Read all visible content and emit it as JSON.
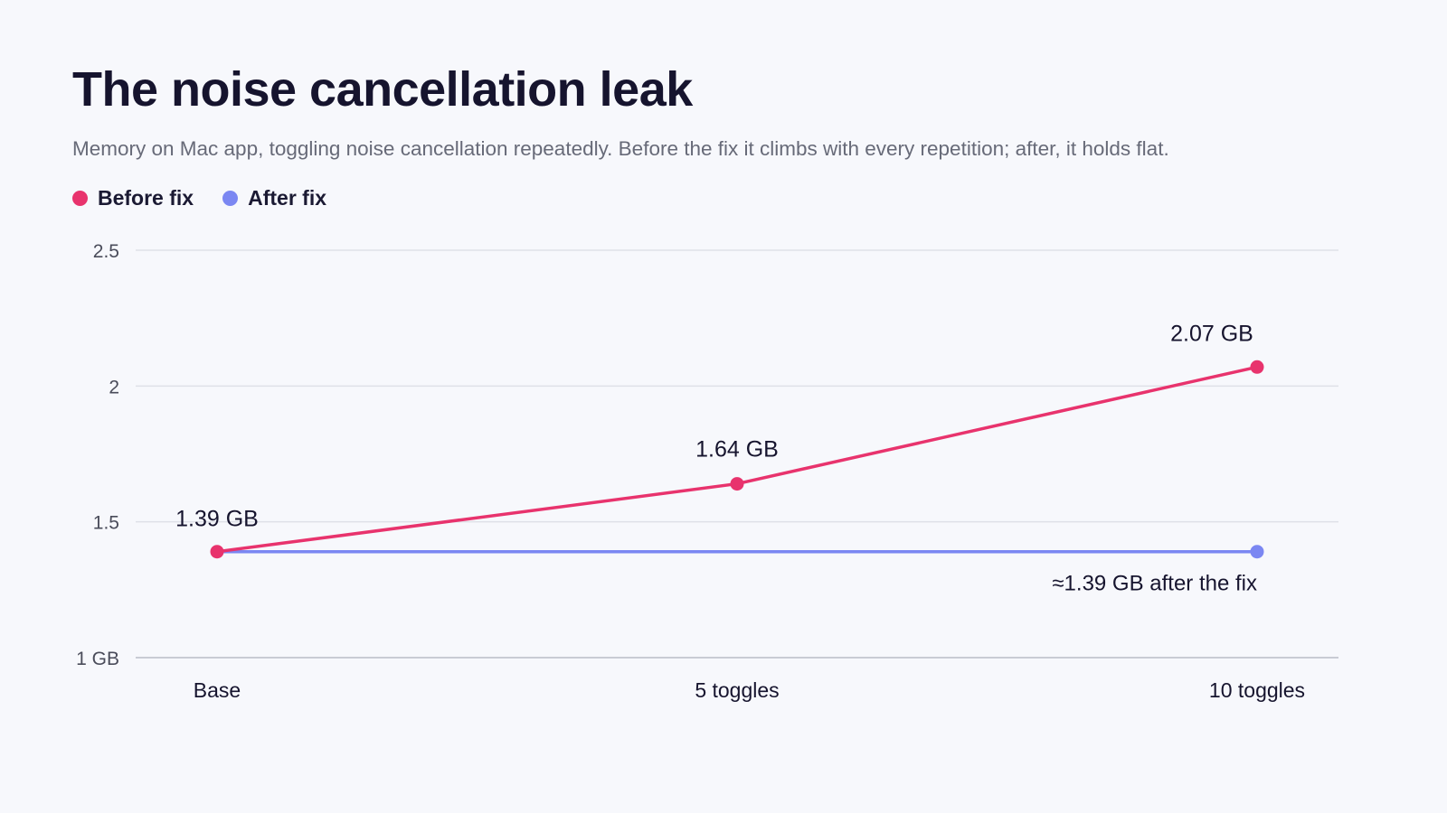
{
  "title": "The noise cancellation leak",
  "subtitle": "Memory on Mac app, toggling noise cancellation repeatedly. Before the fix it climbs with every repetition; after, it holds flat.",
  "colors": {
    "before": "#e8336d",
    "after": "#7b87f2",
    "grid": "#dfe1e8",
    "axis": "#c9cbd4",
    "tick_text": "#4a4c5a",
    "label_text": "#16142e"
  },
  "chart_data": {
    "type": "line",
    "categories": [
      "Base",
      "5 toggles",
      "10 toggles"
    ],
    "ylim": [
      1,
      2.5
    ],
    "yticks": [
      {
        "value": 1,
        "label": "1 GB"
      },
      {
        "value": 1.5,
        "label": "1.5"
      },
      {
        "value": 2,
        "label": "2"
      },
      {
        "value": 2.5,
        "label": "2.5"
      }
    ],
    "grid": true,
    "legend_position": "top-left",
    "series": [
      {
        "name": "Before fix",
        "color": "#e8336d",
        "values": [
          1.39,
          1.64,
          2.07
        ],
        "data_labels": [
          "1.39 GB",
          "1.64 GB",
          "2.07 GB"
        ]
      },
      {
        "name": "After fix",
        "color": "#7b87f2",
        "values": [
          1.39,
          1.39,
          1.39
        ]
      }
    ],
    "annotation": "≈1.39 GB after the fix"
  }
}
